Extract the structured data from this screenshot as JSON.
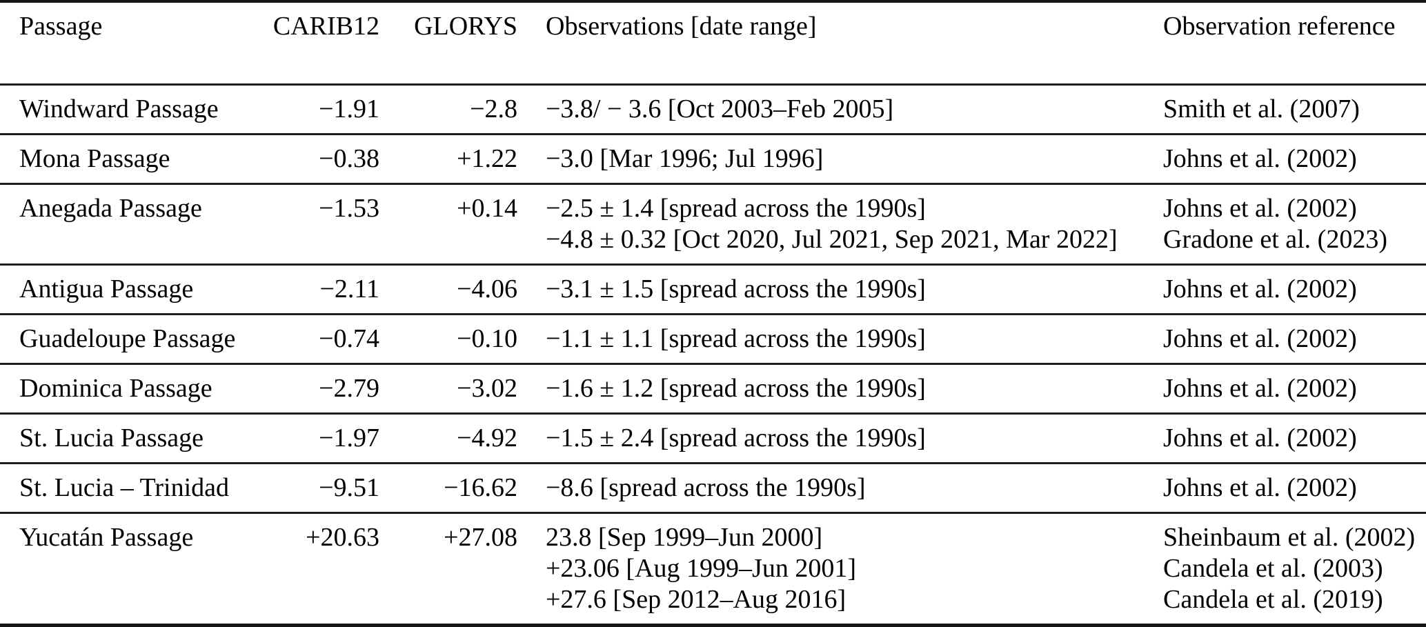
{
  "table": {
    "columns": [
      {
        "key": "passage",
        "label": "Passage"
      },
      {
        "key": "carib12",
        "label": "CARIB12"
      },
      {
        "key": "glorys",
        "label": "GLORYS"
      },
      {
        "key": "observations",
        "label": "Observations [date range]"
      },
      {
        "key": "reference",
        "label": "Observation reference"
      }
    ],
    "rows": [
      {
        "passage": "Windward Passage",
        "carib12": "−1.91",
        "glorys": "−2.8",
        "observations": [
          "−3.8/ − 3.6 [Oct 2003–Feb 2005]"
        ],
        "references": [
          "Smith et al. (2007)"
        ]
      },
      {
        "passage": "Mona Passage",
        "carib12": "−0.38",
        "glorys": "+1.22",
        "observations": [
          "−3.0 [Mar 1996; Jul 1996]"
        ],
        "references": [
          "Johns et al. (2002)"
        ]
      },
      {
        "passage": "Anegada Passage",
        "carib12": "−1.53",
        "glorys": "+0.14",
        "observations": [
          "−2.5 ± 1.4 [spread across the 1990s]",
          "−4.8 ± 0.32 [Oct 2020, Jul 2021, Sep 2021, Mar 2022]"
        ],
        "references": [
          "Johns et al. (2002)",
          "Gradone et al. (2023)"
        ]
      },
      {
        "passage": "Antigua Passage",
        "carib12": "−2.11",
        "glorys": "−4.06",
        "observations": [
          "−3.1 ± 1.5 [spread across the 1990s]"
        ],
        "references": [
          "Johns et al. (2002)"
        ]
      },
      {
        "passage": "Guadeloupe Passage",
        "carib12": "−0.74",
        "glorys": "−0.10",
        "observations": [
          "−1.1 ± 1.1 [spread across the 1990s]"
        ],
        "references": [
          "Johns et al. (2002)"
        ]
      },
      {
        "passage": "Dominica Passage",
        "carib12": "−2.79",
        "glorys": "−3.02",
        "observations": [
          "−1.6 ± 1.2 [spread across the 1990s]"
        ],
        "references": [
          "Johns et al. (2002)"
        ]
      },
      {
        "passage": "St. Lucia Passage",
        "carib12": "−1.97",
        "glorys": "−4.92",
        "observations": [
          "−1.5 ± 2.4 [spread across the 1990s]"
        ],
        "references": [
          "Johns et al. (2002)"
        ]
      },
      {
        "passage": "St. Lucia – Trinidad",
        "carib12": "−9.51",
        "glorys": "−16.62",
        "observations": [
          "−8.6 [spread across the 1990s]"
        ],
        "references": [
          "Johns et al. (2002)"
        ]
      },
      {
        "passage": "Yucatán Passage",
        "carib12": "+20.63",
        "glorys": "+27.08",
        "observations": [
          "23.8 [Sep 1999–Jun 2000]",
          "+23.06 [Aug 1999–Jun 2001]",
          "+27.6 [Sep 2012–Aug 2016]"
        ],
        "references": [
          "Sheinbaum et al. (2002)",
          "Candela et al. (2003)",
          "Candela et al. (2019)"
        ]
      }
    ]
  }
}
